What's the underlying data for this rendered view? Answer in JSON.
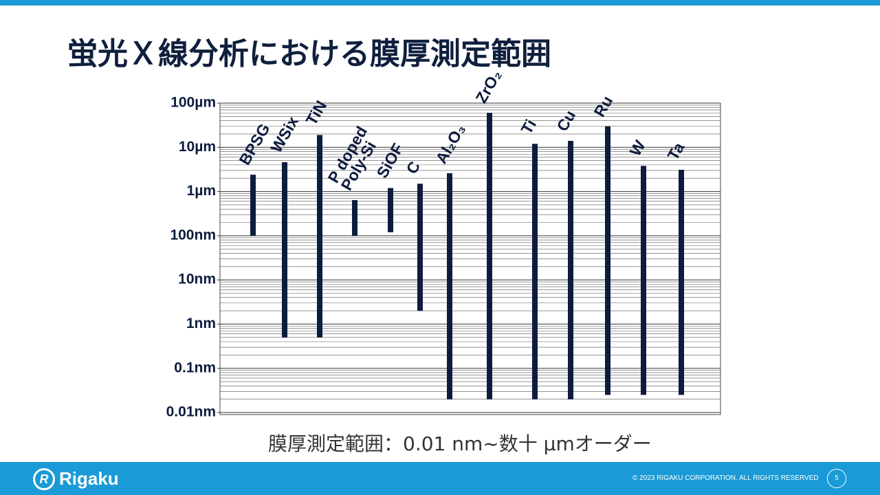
{
  "chart_data": {
    "type": "range-bar",
    "title": "蛍光Ｘ線分析における膜厚測定範囲",
    "caption": "膜厚測定範囲：0.01 nm~数十 µmオーダー",
    "categories": [
      "BPSG",
      "WSix",
      "TiN",
      "P doped\nPoly-Si",
      "SiOF",
      "C",
      "Al₂O₃",
      "ZrO₂",
      "Ti",
      "Cu",
      "Ru",
      "W",
      "Ta"
    ],
    "low": [
      100,
      0.5,
      0.5,
      100,
      120,
      2,
      0.02,
      0.02,
      0.02,
      0.02,
      0.025,
      0.025,
      0.025
    ],
    "high": [
      2400,
      4600,
      19000,
      640,
      1200,
      1500,
      2600,
      60000,
      12000,
      14000,
      30000,
      3800,
      3100
    ],
    "color": "#0d1b3e",
    "log_scale": true,
    "grid": true,
    "minor_grid": true,
    "ylim": [
      0.01,
      100000
    ],
    "yticks": [
      {
        "value": 0.01,
        "label": "0.01nm"
      },
      {
        "value": 0.1,
        "label": "0.1nm"
      },
      {
        "value": 1,
        "label": "1nm"
      },
      {
        "value": 10,
        "label": "10nm"
      },
      {
        "value": 100,
        "label": "100nm"
      },
      {
        "value": 1000,
        "label": "1µm"
      },
      {
        "value": 10000,
        "label": "10µm"
      },
      {
        "value": 100000,
        "label": "100µm"
      }
    ]
  },
  "footer": {
    "logo": "Rigaku",
    "copyright": "© 2023 RIGAKU CORPORATION. ALL RIGHTS RESERVED",
    "page": "5"
  }
}
